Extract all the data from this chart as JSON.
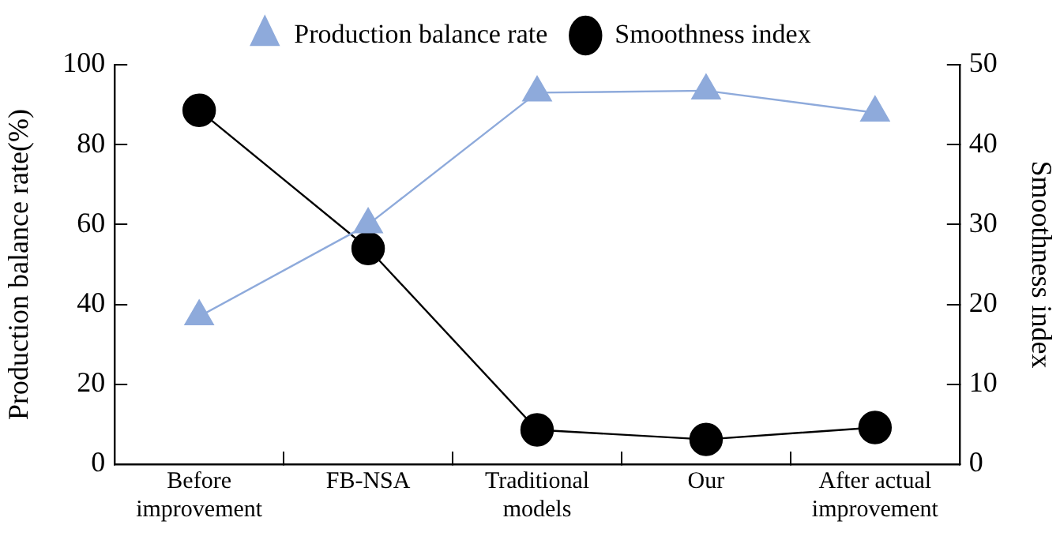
{
  "chart_data": {
    "type": "line",
    "ylabel": "Production balance rate(%)",
    "y2label": "Smoothness index",
    "categories": [
      "Before\nimprovement",
      "FB-NSA",
      "Traditional\nmodels",
      "Our",
      "After actual\nimprovement"
    ],
    "series": [
      {
        "name": "Production balance rate",
        "color": "#8eaadb",
        "marker": "triangle",
        "values": [
          37,
          60,
          93,
          93.5,
          88
        ]
      },
      {
        "name": "Smoothness index",
        "color": "#000000",
        "marker": "circle",
        "axis": "y2",
        "values": [
          44.3,
          27,
          4.3,
          3.1,
          4.6
        ]
      }
    ],
    "ylim": [
      0,
      100
    ],
    "yticks": [
      0,
      20,
      40,
      60,
      80,
      100
    ],
    "y2lim": [
      0,
      50
    ],
    "y2ticks": [
      0,
      10,
      20,
      30,
      40,
      50
    ],
    "grid": false,
    "legend": "top",
    "line_style": "solid"
  }
}
